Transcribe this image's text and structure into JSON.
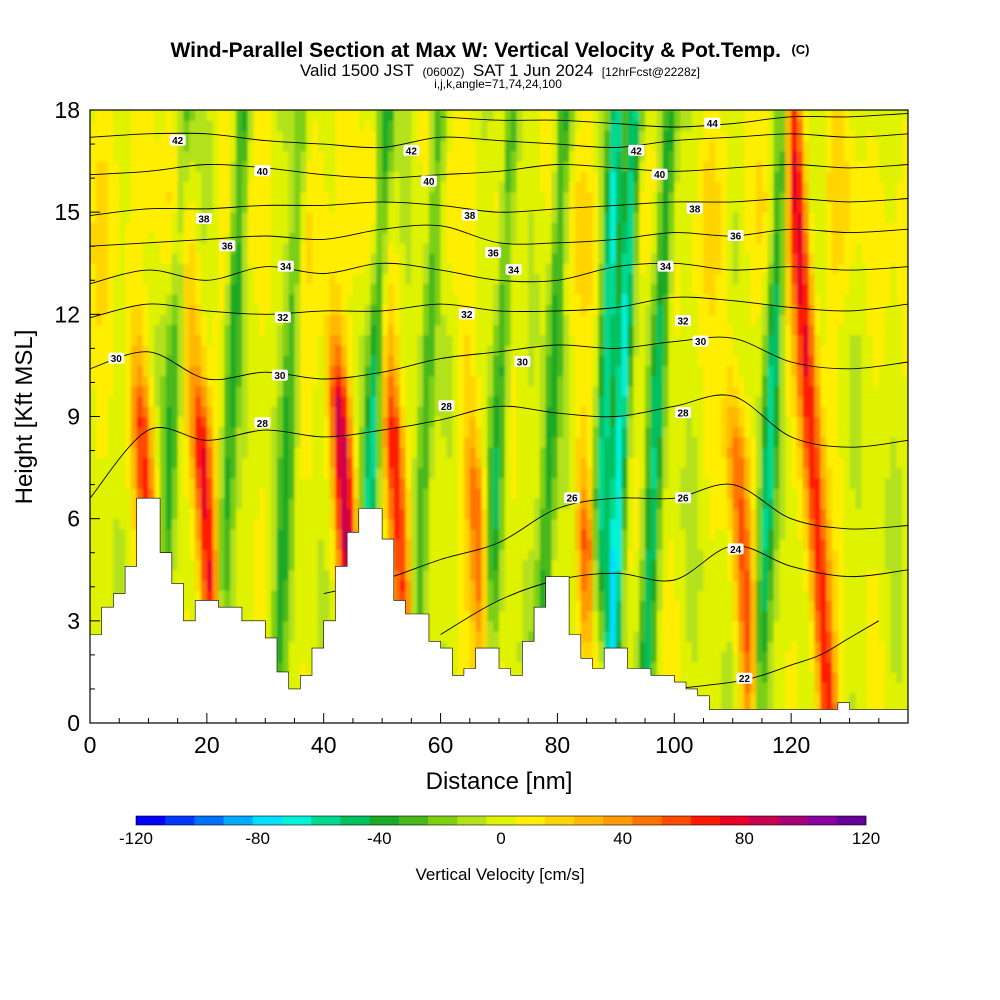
{
  "chart_data": {
    "type": "heatmap",
    "title": {
      "main": "Wind-Parallel Section at Max W: Vertical Velocity & Pot.Temp.",
      "main_suffix": "(C)",
      "line2_a": "Valid 1500 JST",
      "line2_b": "(0600Z)",
      "line2_c": "SAT 1 Jun 2024",
      "line2_d": "[12hrFcst@2228z]",
      "line3": "i,j,k,angle=71,74,24,100"
    },
    "xlabel": "Distance [nm]",
    "ylabel": "Height [Kft MSL]",
    "xlim": [
      0,
      140
    ],
    "ylim": [
      0,
      18
    ],
    "x_ticks": [
      "0",
      "20",
      "40",
      "60",
      "80",
      "100",
      "120"
    ],
    "y_ticks": [
      "0",
      "3",
      "6",
      "9",
      "12",
      "15",
      "18"
    ],
    "colorbar": {
      "title": "Vertical Velocity [cm/s]",
      "ticks": [
        "-120",
        "-80",
        "-40",
        "0",
        "40",
        "80",
        "120"
      ],
      "colors": [
        "#0000ff",
        "#0037ff",
        "#0070ff",
        "#00aaff",
        "#00dfff",
        "#00f2d8",
        "#00d890",
        "#00c060",
        "#1aaa28",
        "#4ab81a",
        "#7dcf12",
        "#b3e11a",
        "#dff200",
        "#ffee00",
        "#ffd500",
        "#ffb900",
        "#ff9a00",
        "#ff7400",
        "#ff4c00",
        "#ff1a00",
        "#e8002a",
        "#c80050",
        "#a80078",
        "#8a00a0",
        "#640096"
      ]
    },
    "terrain_kft": [
      [
        0,
        2.6
      ],
      [
        2,
        3.4
      ],
      [
        4,
        3.8
      ],
      [
        6,
        4.6
      ],
      [
        8,
        6.6
      ],
      [
        10,
        6.6
      ],
      [
        12,
        5.0
      ],
      [
        14,
        4.1
      ],
      [
        16,
        3.0
      ],
      [
        18,
        3.6
      ],
      [
        20,
        3.6
      ],
      [
        22,
        3.4
      ],
      [
        24,
        3.4
      ],
      [
        26,
        3.0
      ],
      [
        28,
        3.0
      ],
      [
        30,
        2.5
      ],
      [
        32,
        1.5
      ],
      [
        34,
        1.0
      ],
      [
        36,
        1.4
      ],
      [
        38,
        2.2
      ],
      [
        40,
        3.0
      ],
      [
        42,
        4.6
      ],
      [
        44,
        5.6
      ],
      [
        46,
        6.3
      ],
      [
        48,
        6.3
      ],
      [
        50,
        5.4
      ],
      [
        52,
        3.6
      ],
      [
        54,
        3.2
      ],
      [
        56,
        3.2
      ],
      [
        58,
        2.4
      ],
      [
        60,
        2.2
      ],
      [
        62,
        1.4
      ],
      [
        64,
        1.6
      ],
      [
        66,
        2.2
      ],
      [
        68,
        2.2
      ],
      [
        70,
        1.6
      ],
      [
        72,
        1.4
      ],
      [
        74,
        2.4
      ],
      [
        76,
        3.4
      ],
      [
        78,
        4.3
      ],
      [
        80,
        4.3
      ],
      [
        82,
        2.6
      ],
      [
        84,
        1.9
      ],
      [
        86,
        1.6
      ],
      [
        88,
        2.2
      ],
      [
        90,
        2.2
      ],
      [
        92,
        1.6
      ],
      [
        94,
        1.6
      ],
      [
        96,
        1.4
      ],
      [
        98,
        1.4
      ],
      [
        100,
        1.2
      ],
      [
        102,
        1.0
      ],
      [
        104,
        0.8
      ],
      [
        106,
        0.4
      ],
      [
        108,
        0.4
      ],
      [
        110,
        0.4
      ],
      [
        112,
        0.4
      ],
      [
        114,
        0.4
      ],
      [
        116,
        0.4
      ],
      [
        118,
        0.4
      ],
      [
        120,
        0.4
      ],
      [
        122,
        0.4
      ],
      [
        124,
        0.4
      ],
      [
        126,
        0.4
      ],
      [
        128,
        0.6
      ],
      [
        130,
        0.4
      ],
      [
        132,
        0.4
      ],
      [
        134,
        0.4
      ],
      [
        136,
        0.4
      ],
      [
        138,
        0.4
      ],
      [
        140,
        0.4
      ]
    ],
    "theta_contours": [
      {
        "level": 22,
        "label": "22",
        "pts": [
          [
            100,
            1.0
          ],
          [
            110,
            1.2
          ],
          [
            115,
            1.4
          ],
          [
            120,
            1.7
          ],
          [
            125,
            2.0
          ],
          [
            130,
            2.5
          ],
          [
            135,
            3.0
          ]
        ]
      },
      {
        "level": 24,
        "label": "24",
        "pts": [
          [
            60,
            2.6
          ],
          [
            70,
            3.6
          ],
          [
            80,
            4.2
          ],
          [
            90,
            4.4
          ],
          [
            100,
            4.2
          ],
          [
            110,
            5.2
          ],
          [
            120,
            4.6
          ],
          [
            130,
            4.3
          ],
          [
            140,
            4.5
          ]
        ]
      },
      {
        "level": 26,
        "label": "26",
        "pts": [
          [
            40,
            3.8
          ],
          [
            50,
            4.2
          ],
          [
            60,
            4.8
          ],
          [
            70,
            5.3
          ],
          [
            80,
            6.3
          ],
          [
            90,
            6.6
          ],
          [
            100,
            6.6
          ],
          [
            110,
            7.0
          ],
          [
            120,
            6.0
          ],
          [
            130,
            5.7
          ],
          [
            140,
            5.8
          ]
        ]
      },
      {
        "level": 28,
        "label": "28",
        "pts": [
          [
            0,
            6.6
          ],
          [
            10,
            8.6
          ],
          [
            20,
            8.3
          ],
          [
            30,
            8.6
          ],
          [
            40,
            8.4
          ],
          [
            50,
            8.6
          ],
          [
            60,
            8.9
          ],
          [
            70,
            9.3
          ],
          [
            80,
            9.1
          ],
          [
            90,
            9.0
          ],
          [
            100,
            9.3
          ],
          [
            110,
            9.6
          ],
          [
            120,
            8.4
          ],
          [
            130,
            8.1
          ],
          [
            140,
            8.3
          ]
        ]
      },
      {
        "level": 30,
        "label": "30",
        "pts": [
          [
            0,
            10.4
          ],
          [
            10,
            10.9
          ],
          [
            20,
            10.1
          ],
          [
            30,
            10.3
          ],
          [
            40,
            10.1
          ],
          [
            50,
            10.3
          ],
          [
            60,
            10.7
          ],
          [
            70,
            10.9
          ],
          [
            80,
            11.1
          ],
          [
            90,
            11.0
          ],
          [
            100,
            11.2
          ],
          [
            110,
            11.3
          ],
          [
            120,
            10.6
          ],
          [
            130,
            10.4
          ],
          [
            140,
            10.6
          ]
        ]
      },
      {
        "level": 32,
        "label": "32",
        "pts": [
          [
            0,
            11.9
          ],
          [
            10,
            12.3
          ],
          [
            20,
            12.1
          ],
          [
            30,
            12.0
          ],
          [
            40,
            12.1
          ],
          [
            50,
            12.1
          ],
          [
            60,
            12.3
          ],
          [
            70,
            12.1
          ],
          [
            80,
            12.1
          ],
          [
            90,
            12.2
          ],
          [
            100,
            12.5
          ],
          [
            110,
            12.4
          ],
          [
            120,
            12.2
          ],
          [
            130,
            12.1
          ],
          [
            140,
            12.3
          ]
        ]
      },
      {
        "level": 34,
        "label": "34",
        "pts": [
          [
            0,
            12.9
          ],
          [
            10,
            13.3
          ],
          [
            20,
            13.0
          ],
          [
            30,
            13.4
          ],
          [
            40,
            13.2
          ],
          [
            50,
            13.5
          ],
          [
            60,
            13.3
          ],
          [
            70,
            13.0
          ],
          [
            80,
            13.0
          ],
          [
            90,
            13.4
          ],
          [
            100,
            13.5
          ],
          [
            110,
            13.3
          ],
          [
            120,
            13.4
          ],
          [
            130,
            13.3
          ],
          [
            140,
            13.4
          ]
        ]
      },
      {
        "level": 36,
        "label": "36",
        "pts": [
          [
            0,
            14.0
          ],
          [
            10,
            14.1
          ],
          [
            20,
            14.2
          ],
          [
            30,
            14.3
          ],
          [
            40,
            14.2
          ],
          [
            50,
            14.5
          ],
          [
            60,
            14.6
          ],
          [
            70,
            14.1
          ],
          [
            80,
            14.1
          ],
          [
            90,
            14.2
          ],
          [
            100,
            14.4
          ],
          [
            110,
            14.3
          ],
          [
            120,
            14.5
          ],
          [
            130,
            14.4
          ],
          [
            140,
            14.5
          ]
        ]
      },
      {
        "level": 38,
        "label": "38",
        "pts": [
          [
            0,
            14.9
          ],
          [
            10,
            15.1
          ],
          [
            20,
            15.1
          ],
          [
            30,
            15.2
          ],
          [
            40,
            15.2
          ],
          [
            50,
            15.3
          ],
          [
            60,
            15.2
          ],
          [
            70,
            15.0
          ],
          [
            80,
            15.1
          ],
          [
            90,
            15.2
          ],
          [
            100,
            15.3
          ],
          [
            110,
            15.3
          ],
          [
            120,
            15.4
          ],
          [
            130,
            15.3
          ],
          [
            140,
            15.4
          ]
        ]
      },
      {
        "level": 40,
        "label": "40",
        "pts": [
          [
            0,
            16.1
          ],
          [
            10,
            16.2
          ],
          [
            20,
            16.4
          ],
          [
            30,
            16.3
          ],
          [
            40,
            16.1
          ],
          [
            50,
            16.0
          ],
          [
            60,
            16.1
          ],
          [
            70,
            16.2
          ],
          [
            80,
            16.4
          ],
          [
            90,
            16.3
          ],
          [
            100,
            16.2
          ],
          [
            110,
            16.3
          ],
          [
            120,
            16.4
          ],
          [
            130,
            16.3
          ],
          [
            140,
            16.4
          ]
        ]
      },
      {
        "level": 42,
        "label": "42",
        "pts": [
          [
            0,
            17.2
          ],
          [
            10,
            17.3
          ],
          [
            20,
            17.3
          ],
          [
            30,
            17.1
          ],
          [
            40,
            17.0
          ],
          [
            50,
            16.9
          ],
          [
            60,
            17.2
          ],
          [
            70,
            17.1
          ],
          [
            80,
            17.0
          ],
          [
            90,
            16.9
          ],
          [
            100,
            17.1
          ],
          [
            110,
            17.2
          ],
          [
            120,
            17.3
          ],
          [
            130,
            17.2
          ],
          [
            140,
            17.3
          ]
        ]
      },
      {
        "level": 44,
        "label": "44",
        "pts": [
          [
            60,
            17.8
          ],
          [
            70,
            17.7
          ],
          [
            80,
            17.7
          ],
          [
            90,
            17.6
          ],
          [
            100,
            17.5
          ],
          [
            110,
            17.6
          ],
          [
            120,
            17.8
          ],
          [
            130,
            17.8
          ],
          [
            140,
            17.9
          ]
        ]
      }
    ],
    "theta_labels": [
      {
        "text": "42",
        "x": 15,
        "y": 17.1
      },
      {
        "text": "40",
        "x": 29.5,
        "y": 16.2
      },
      {
        "text": "38",
        "x": 19.5,
        "y": 14.8
      },
      {
        "text": "36",
        "x": 23.5,
        "y": 14.0
      },
      {
        "text": "34",
        "x": 33.5,
        "y": 13.4
      },
      {
        "text": "32",
        "x": 33.0,
        "y": 11.9
      },
      {
        "text": "30",
        "x": 4.5,
        "y": 10.7
      },
      {
        "text": "30",
        "x": 32.5,
        "y": 10.2
      },
      {
        "text": "28",
        "x": 29.5,
        "y": 8.8
      },
      {
        "text": "42",
        "x": 55.0,
        "y": 16.8
      },
      {
        "text": "40",
        "x": 58.0,
        "y": 15.9
      },
      {
        "text": "38",
        "x": 65.0,
        "y": 14.9
      },
      {
        "text": "36",
        "x": 69.0,
        "y": 13.8
      },
      {
        "text": "34",
        "x": 72.5,
        "y": 13.3
      },
      {
        "text": "32",
        "x": 64.5,
        "y": 12.0
      },
      {
        "text": "30",
        "x": 74.0,
        "y": 10.6
      },
      {
        "text": "28",
        "x": 61.0,
        "y": 9.3
      },
      {
        "text": "26",
        "x": 82.5,
        "y": 6.6
      },
      {
        "text": "44",
        "x": 106.5,
        "y": 17.6
      },
      {
        "text": "42",
        "x": 93.5,
        "y": 16.8
      },
      {
        "text": "40",
        "x": 97.5,
        "y": 16.1
      },
      {
        "text": "38",
        "x": 103.5,
        "y": 15.1
      },
      {
        "text": "36",
        "x": 110.5,
        "y": 14.3
      },
      {
        "text": "34",
        "x": 98.5,
        "y": 13.4
      },
      {
        "text": "32",
        "x": 101.5,
        "y": 11.8
      },
      {
        "text": "30",
        "x": 104.5,
        "y": 11.2
      },
      {
        "text": "28",
        "x": 101.5,
        "y": 9.1
      },
      {
        "text": "26",
        "x": 101.5,
        "y": 6.6
      },
      {
        "text": "24",
        "x": 110.5,
        "y": 5.1
      },
      {
        "text": "22",
        "x": 112.0,
        "y": 1.3
      }
    ],
    "w_field_description_cms": {
      "updrafts": [
        {
          "x": 10.5,
          "ytop": 9.0,
          "peak": 60
        },
        {
          "x": 20.5,
          "ytop": 8.5,
          "peak": 85
        },
        {
          "x": 44.5,
          "ytop": 9.5,
          "peak": 85
        },
        {
          "x": 53.5,
          "ytop": 8.5,
          "peak": 75
        },
        {
          "x": 67.0,
          "ytop": 7.0,
          "peak": 55
        },
        {
          "x": 85.5,
          "ytop": 5.5,
          "peak": 65
        },
        {
          "x": 112.0,
          "ytop": 8.0,
          "peak": 55
        },
        {
          "x": 125.0,
          "ytop": 18.0,
          "peak": 75
        }
      ],
      "downdrafts": [
        {
          "x": 14.0,
          "peak": -35
        },
        {
          "x": 24.0,
          "peak": -45
        },
        {
          "x": 34.0,
          "peak": -35
        },
        {
          "x": 48.5,
          "peak": -55
        },
        {
          "x": 57.5,
          "peak": -40
        },
        {
          "x": 70.0,
          "peak": -45
        },
        {
          "x": 79.0,
          "peak": -45
        },
        {
          "x": 88.0,
          "peak": -60
        },
        {
          "x": 91.0,
          "peak": -75
        },
        {
          "x": 97.0,
          "peak": -50
        },
        {
          "x": 116.5,
          "peak": -55
        }
      ]
    }
  }
}
